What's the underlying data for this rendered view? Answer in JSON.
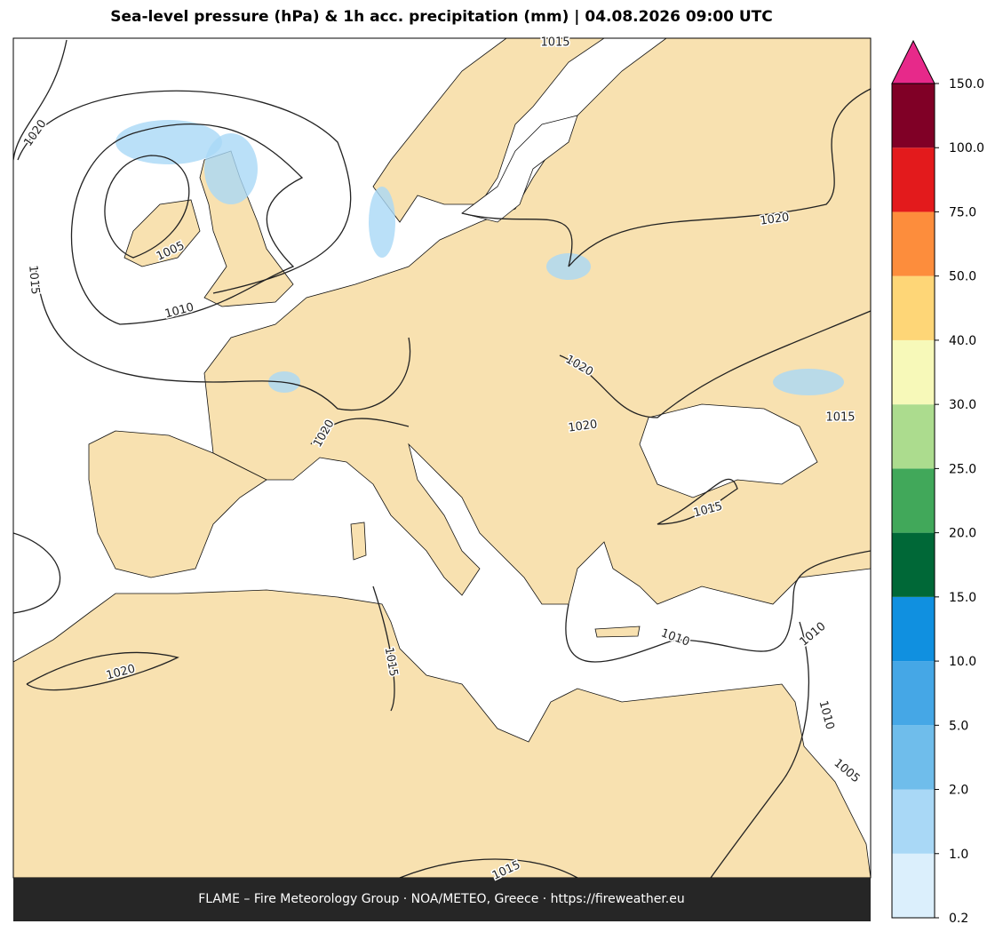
{
  "title": "Sea-level pressure (hPa) & 1h acc. precipitation (mm)  |  04.08.2026 09:00 UTC",
  "colorbar": {
    "ticks": [
      0.2,
      {
        "value": 1,
        "label": "1.0"
      },
      {
        "value": 2,
        "label": "2.0"
      },
      {
        "value": 5,
        "label": "5.0"
      },
      {
        "value": 10,
        "label": "10.0"
      },
      {
        "value": 15,
        "label": "15.0"
      },
      {
        "value": 20,
        "label": "20.0"
      },
      {
        "value": 25,
        "label": "25.0"
      },
      {
        "value": 30,
        "label": "30.0"
      },
      {
        "value": 40,
        "label": "40.0"
      },
      {
        "value": 50,
        "label": "50.0"
      },
      {
        "value": 75,
        "label": "75.0"
      },
      {
        "value": 100,
        "label": "100.0"
      },
      {
        "value": 150,
        "label": "150.0"
      }
    ],
    "colors": [
      "#dbeffc",
      "#a9d8f6",
      "#6fbdeb",
      "#45a7e6",
      "#1090e0",
      "#006837",
      "#41a85a",
      "#acdc8e",
      "#f7f9b9",
      "#fed677",
      "#fd8d3c",
      "#e31a1c",
      "#800026"
    ],
    "extend_color": "#e7298a"
  },
  "contour_labels": [
    1020,
    1015,
    1005,
    1010,
    1015,
    1020,
    1020,
    1020,
    1020,
    1015,
    1015,
    1010,
    1010,
    1015,
    1020,
    1010,
    1005,
    1015
  ],
  "footer": "FLAME – Fire Meteorology Group · NOA/METEO, Greece · https://fireweather.eu"
}
